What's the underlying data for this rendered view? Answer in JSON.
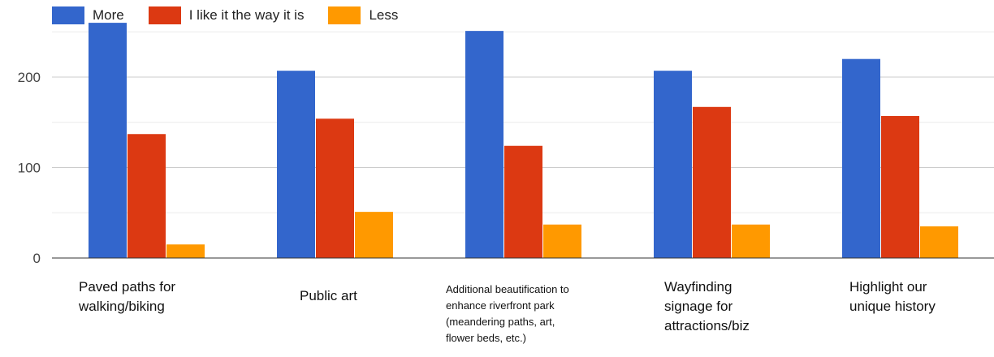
{
  "chart_data": {
    "type": "bar",
    "categories": [
      [
        "Paved paths for",
        "walking/biking"
      ],
      [
        "Public art"
      ],
      [
        "Additional beautification to",
        "enhance riverfront park",
        "(meandering paths, art,",
        "flower beds, etc.)"
      ],
      [
        "Wayfinding",
        "signage for",
        "attractions/biz"
      ],
      [
        "Highlight our",
        "unique history"
      ]
    ],
    "series": [
      {
        "name": "More",
        "color": "#3366cc",
        "values": [
          260,
          207,
          251,
          207,
          220
        ]
      },
      {
        "name": "I like it the way it is",
        "color": "#dc3912",
        "values": [
          137,
          154,
          124,
          167,
          157
        ]
      },
      {
        "name": "Less",
        "color": "#ff9900",
        "values": [
          15,
          51,
          37,
          37,
          35
        ]
      }
    ],
    "ylim": [
      0,
      260
    ],
    "yticks": [
      {
        "value": 0,
        "label": "0"
      },
      {
        "value": 100,
        "label": "100"
      },
      {
        "value": 200,
        "label": "200"
      }
    ],
    "grid": true,
    "legend_position": "top-left",
    "title": "",
    "xlabel": "",
    "ylabel": ""
  }
}
